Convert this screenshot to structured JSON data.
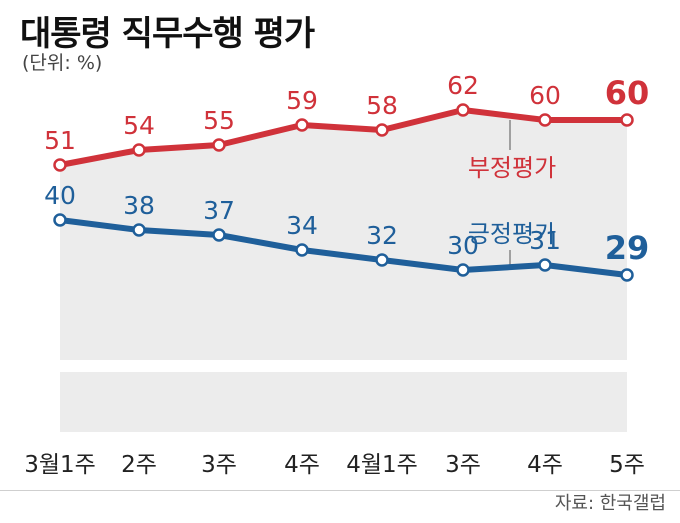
{
  "header": {
    "title": "대통령 직무수행 평가",
    "unit": "(단위: %)"
  },
  "footer": {
    "source": "자료: 한국갤럽"
  },
  "colors": {
    "negative": "#d0323a",
    "positive": "#1f5f9a",
    "band": "#ececec"
  },
  "chart_data": {
    "type": "line",
    "categories": [
      "3월1주",
      "2주",
      "3주",
      "4주",
      "4월1주",
      "3주",
      "4주",
      "5주"
    ],
    "ylim": [
      0,
      70
    ],
    "grid": false,
    "legend": "inline labels",
    "series": [
      {
        "name": "부정평가",
        "values": [
          51,
          54,
          55,
          59,
          58,
          62,
          60,
          60
        ]
      },
      {
        "name": "긍정평가",
        "values": [
          40,
          38,
          37,
          34,
          32,
          30,
          31,
          29
        ]
      }
    ]
  }
}
